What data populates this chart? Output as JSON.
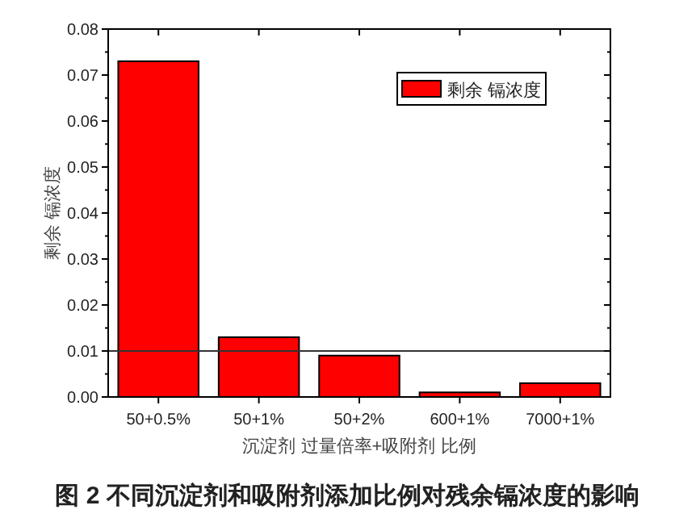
{
  "chart_data": {
    "type": "bar",
    "title": "图 2  不同沉淀剂和吸附剂添加比例对残余镉浓度的影响",
    "xlabel": "沉淀剂 过量倍率+吸附剂 比例",
    "ylabel": "剩余 镉浓度",
    "categories": [
      "50+0.5%",
      "50+1%",
      "50+2%",
      "600+1%",
      "7000+1%"
    ],
    "series": [
      {
        "name": "剩余 镉浓度",
        "color": "#ff0000",
        "values": [
          0.073,
          0.013,
          0.009,
          0.001,
          0.003
        ]
      }
    ],
    "ylim": [
      0,
      0.08
    ],
    "yticks": [
      {
        "value": 0,
        "label": "0.00"
      },
      {
        "value": 0.01,
        "label": "0.01"
      },
      {
        "value": 0.02,
        "label": "0.02"
      },
      {
        "value": 0.03,
        "label": "0.03"
      },
      {
        "value": 0.04,
        "label": "0.04"
      },
      {
        "value": 0.05,
        "label": "0.05"
      },
      {
        "value": 0.06,
        "label": "0.06"
      },
      {
        "value": 0.07,
        "label": "0.07"
      },
      {
        "value": 0.08,
        "label": "0.08"
      }
    ],
    "ref_lines": [
      {
        "axis": "y",
        "value": 0.01,
        "color": "#333333"
      }
    ],
    "legend": "top right",
    "grid": false
  }
}
